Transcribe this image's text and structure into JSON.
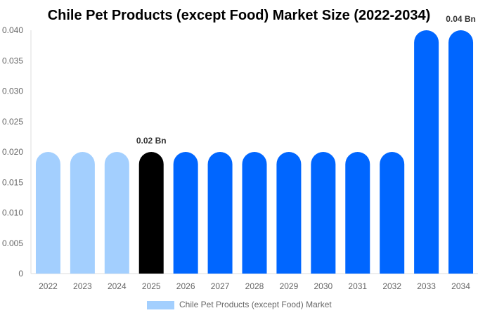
{
  "chart_data": {
    "type": "bar",
    "title": "Chile Pet Products (except Food) Market Size (2022-2034)",
    "xlabel": "",
    "ylabel": "",
    "categories": [
      "2022",
      "2023",
      "2024",
      "2025",
      "2026",
      "2027",
      "2028",
      "2029",
      "2030",
      "2031",
      "2032",
      "2033",
      "2034"
    ],
    "series": [
      {
        "name": "Chile Pet Products (except Food) Market",
        "values": [
          0.02,
          0.02,
          0.02,
          0.02,
          0.02,
          0.02,
          0.02,
          0.02,
          0.02,
          0.02,
          0.02,
          0.04,
          0.04
        ],
        "colors": [
          "#a3cffe",
          "#a3cffe",
          "#a3cffe",
          "#000000",
          "#0066ff",
          "#0066ff",
          "#0066ff",
          "#0066ff",
          "#0066ff",
          "#0066ff",
          "#0066ff",
          "#0066ff",
          "#0066ff"
        ]
      }
    ],
    "ylim": [
      0,
      0.04
    ],
    "yticks": [
      "0",
      "0.005",
      "0.010",
      "0.015",
      "0.020",
      "0.025",
      "0.030",
      "0.035",
      "0.040"
    ],
    "data_labels": [
      {
        "category": "2025",
        "text": "0.02 Bn"
      },
      {
        "category": "2034",
        "text": "0.04 Bn"
      }
    ],
    "legend": {
      "label": "Chile Pet Products (except Food) Market",
      "color": "#a3cffe",
      "position": "bottom"
    },
    "grid": false
  }
}
